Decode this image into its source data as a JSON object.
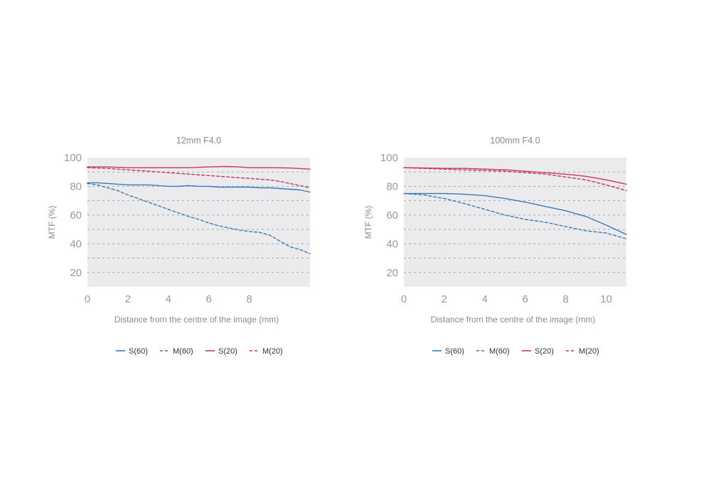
{
  "chart_data": [
    {
      "type": "line",
      "title": "12mm F4.0",
      "xlabel": "Distance from the centre of the image (mm)",
      "ylabel": "MTF (%)",
      "xlim": [
        0,
        11
      ],
      "ylim": [
        10,
        100
      ],
      "xticks": [
        0,
        2,
        4,
        6,
        8
      ],
      "yticks": [
        20,
        40,
        60,
        80,
        100
      ],
      "grid": true,
      "legend": "bottom",
      "series": [
        {
          "name": "S(60)",
          "color": "#3a7ab8",
          "style": "solid",
          "x": [
            0,
            0.5,
            1,
            1.5,
            2,
            3,
            3.5,
            4,
            4.5,
            5,
            5.5,
            6,
            6.5,
            7,
            7.5,
            8,
            8.5,
            9,
            9.5,
            10,
            10.5,
            11
          ],
          "y": [
            82.5,
            82.5,
            82,
            81.5,
            81,
            81,
            80.5,
            80,
            80,
            80.5,
            80,
            80,
            79.5,
            79.5,
            79.5,
            79.5,
            79,
            79,
            78.5,
            78,
            77.5,
            76
          ]
        },
        {
          "name": "M(60)",
          "color": "#3a7ab8",
          "style": "dashed",
          "x": [
            0,
            0.5,
            1,
            1.5,
            2,
            2.5,
            3,
            3.5,
            4,
            4.5,
            5,
            5.5,
            6,
            6.5,
            7,
            7.5,
            8,
            8.5,
            9,
            9.5,
            10,
            10.5,
            11
          ],
          "y": [
            82,
            81,
            79,
            77,
            74,
            71.5,
            69,
            66.5,
            64,
            61.5,
            59,
            57,
            54.5,
            52.5,
            51,
            49.5,
            48.5,
            48,
            46,
            42,
            38,
            36,
            33
          ]
        },
        {
          "name": "S(20)",
          "color": "#c8365e",
          "style": "solid",
          "x": [
            0,
            1,
            2,
            3,
            4,
            5,
            6,
            6.8,
            7.5,
            8,
            9,
            10,
            11
          ],
          "y": [
            93.5,
            93.5,
            93,
            93,
            93,
            93,
            93.5,
            93.8,
            93.5,
            93,
            93,
            92.8,
            92
          ]
        },
        {
          "name": "M(20)",
          "color": "#c8365e",
          "style": "dashed",
          "x": [
            0,
            1,
            2,
            3,
            4,
            5,
            6,
            7,
            8,
            9,
            9.5,
            10,
            10.5,
            11
          ],
          "y": [
            93,
            92.5,
            91.5,
            90.5,
            89.5,
            88.5,
            87.5,
            86.5,
            85.5,
            84.5,
            83.5,
            82,
            80.5,
            79
          ]
        }
      ]
    },
    {
      "type": "line",
      "title": "100mm F4.0",
      "xlabel": "Distance from the centre of the image (mm)",
      "ylabel": "MTF (%)",
      "xlim": [
        0,
        11
      ],
      "ylim": [
        10,
        100
      ],
      "xticks": [
        0,
        2,
        4,
        6,
        8,
        10
      ],
      "yticks": [
        20,
        40,
        60,
        80,
        100
      ],
      "grid": true,
      "legend": "bottom",
      "series": [
        {
          "name": "S(60)",
          "color": "#3a7ab8",
          "style": "solid",
          "x": [
            0,
            1,
            2,
            3,
            4,
            5,
            6,
            7,
            8,
            9,
            10,
            11
          ],
          "y": [
            75,
            75,
            75,
            74.5,
            73.5,
            71.5,
            69,
            66,
            63,
            59,
            53,
            46.5
          ]
        },
        {
          "name": "M(60)",
          "color": "#3a7ab8",
          "style": "dashed",
          "x": [
            0,
            1,
            2,
            3,
            4,
            5,
            6,
            7,
            8,
            9,
            10,
            11
          ],
          "y": [
            75,
            74,
            71.5,
            68,
            64,
            60,
            57,
            55,
            52,
            49,
            47.5,
            43.5
          ]
        },
        {
          "name": "S(20)",
          "color": "#c8365e",
          "style": "solid",
          "x": [
            0,
            1,
            2,
            3,
            4,
            5,
            6,
            7,
            8,
            9,
            10,
            11
          ],
          "y": [
            93,
            92.8,
            92.5,
            92.5,
            92,
            91.5,
            90.5,
            89.5,
            88.5,
            87,
            84.5,
            81.5
          ]
        },
        {
          "name": "M(20)",
          "color": "#c8365e",
          "style": "dashed",
          "x": [
            0,
            1,
            2,
            3,
            4,
            5,
            6,
            7,
            8,
            9,
            10,
            11
          ],
          "y": [
            93,
            92.5,
            92,
            91.5,
            91,
            90.5,
            89.5,
            88.5,
            86.5,
            84.5,
            81,
            77
          ]
        }
      ]
    }
  ]
}
